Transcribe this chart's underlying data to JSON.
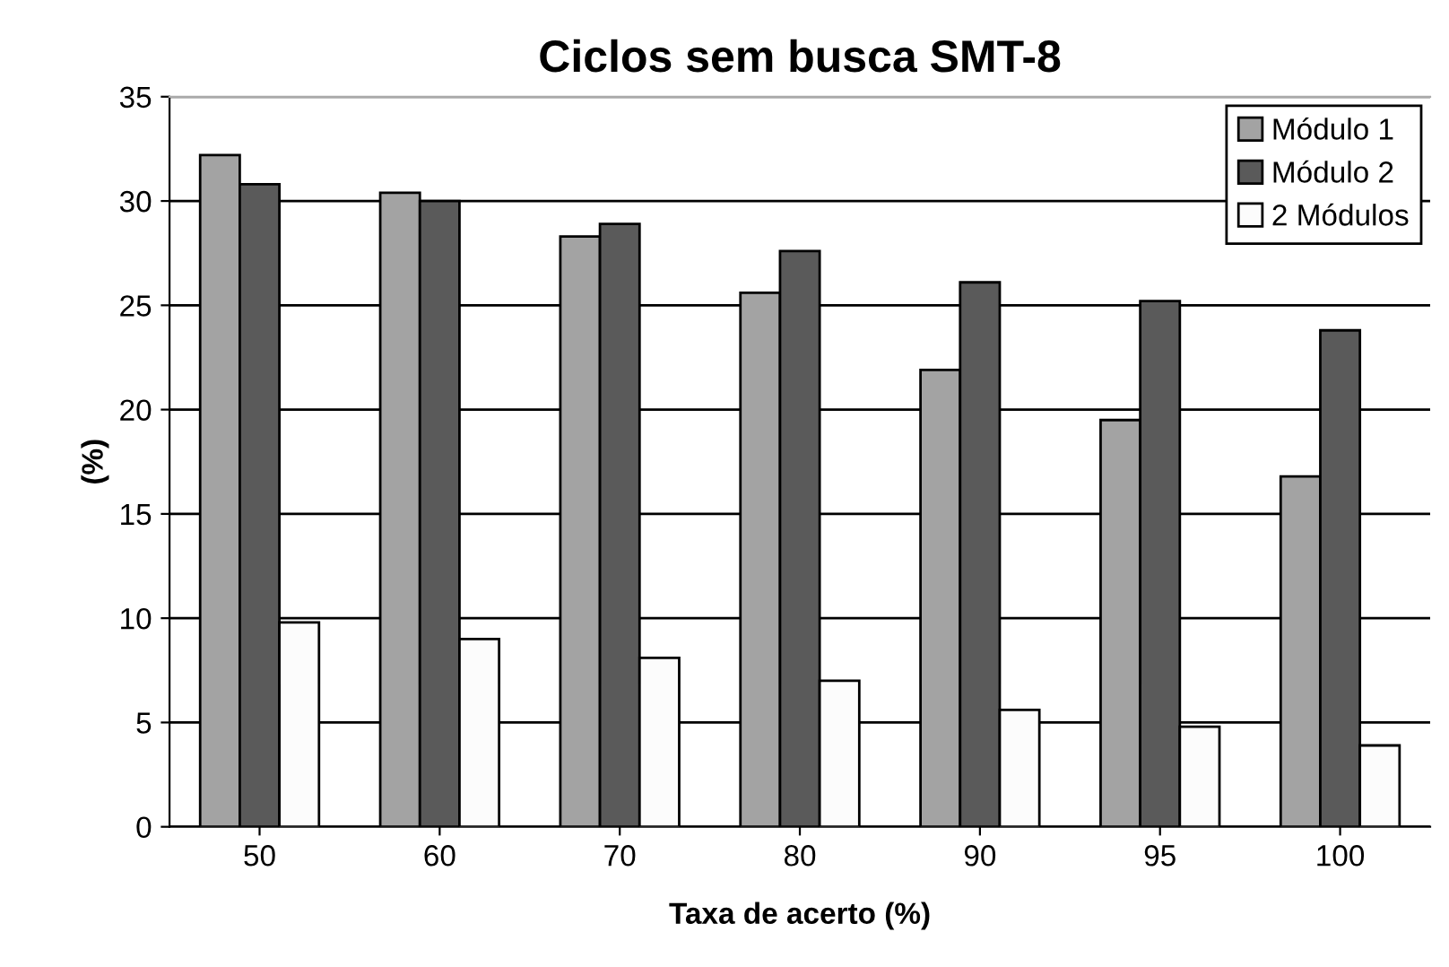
{
  "chart_data": {
    "type": "bar",
    "title": "Ciclos sem busca SMT-8",
    "xlabel": "Taxa de acerto (%)",
    "ylabel": "(%)",
    "categories": [
      "50",
      "60",
      "70",
      "80",
      "90",
      "95",
      "100"
    ],
    "series": [
      {
        "name": "Módulo 1",
        "color": "#a3a3a3",
        "values": [
          32.2,
          30.4,
          28.3,
          25.6,
          21.9,
          19.5,
          16.8
        ]
      },
      {
        "name": "Módulo 2",
        "color": "#5a5a5a",
        "values": [
          30.8,
          30.0,
          28.9,
          27.6,
          26.1,
          25.2,
          23.8
        ]
      },
      {
        "name": "2 Módulos",
        "color": "#fcfcfc",
        "values": [
          9.8,
          9.0,
          8.1,
          7.0,
          5.6,
          4.8,
          3.9
        ]
      }
    ],
    "ylim": [
      0,
      35
    ],
    "yticks": [
      0,
      5,
      10,
      15,
      20,
      25,
      30,
      35
    ],
    "grid": "y",
    "legend": "top right"
  }
}
